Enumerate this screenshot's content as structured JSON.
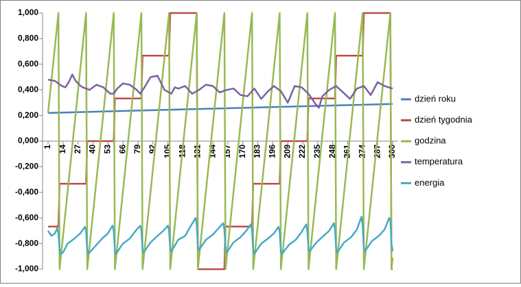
{
  "chart_data": {
    "type": "line",
    "xlim": [
      1,
      300
    ],
    "xticks": [
      1,
      14,
      27,
      40,
      53,
      66,
      79,
      92,
      105,
      118,
      131,
      144,
      157,
      170,
      183,
      196,
      209,
      222,
      235,
      248,
      261,
      274,
      287,
      300
    ],
    "ylim": [
      -1,
      1
    ],
    "yticks": [
      {
        "value": -1,
        "label": "-1,000"
      },
      {
        "value": -0.8,
        "label": "-0,800"
      },
      {
        "value": -0.6,
        "label": "-0,600"
      },
      {
        "value": -0.4,
        "label": "-0,400"
      },
      {
        "value": -0.2,
        "label": "-0,200"
      },
      {
        "value": 0,
        "label": "0,000"
      },
      {
        "value": 0.2,
        "label": "0,200"
      },
      {
        "value": 0.4,
        "label": "0,400"
      },
      {
        "value": 0.6,
        "label": "0,600"
      },
      {
        "value": 0.8,
        "label": "0,800"
      },
      {
        "value": 1,
        "label": "1,000"
      }
    ],
    "grid": false,
    "legend": "right",
    "series": [
      {
        "name": "dzień roku",
        "color": "#4a7ebb",
        "x": [
          1,
          300
        ],
        "values": [
          0.22,
          0.29
        ]
      },
      {
        "name": "dzień tygodnia",
        "color": "#be4b48",
        "x": [
          1,
          10,
          11,
          34,
          35,
          58,
          59,
          82,
          83,
          106,
          107,
          130,
          131,
          154,
          155,
          178,
          179,
          202,
          203,
          226,
          227,
          250,
          251,
          274,
          275,
          298,
          299,
          300
        ],
        "values": [
          -0.667,
          -0.667,
          -0.333,
          -0.333,
          0,
          0,
          0.333,
          0.333,
          0.667,
          0.667,
          1,
          1,
          -1,
          -1,
          -0.667,
          -0.667,
          -0.333,
          -0.333,
          0,
          0,
          0.333,
          0.333,
          0.667,
          0.667,
          1,
          1,
          -1,
          -1
        ]
      },
      {
        "name": "godzina",
        "color": "#98b954",
        "x": [
          1,
          10,
          11,
          34,
          35,
          58,
          59,
          82,
          83,
          106,
          107,
          130,
          131,
          154,
          155,
          178,
          179,
          202,
          203,
          226,
          227,
          250,
          251,
          274,
          275,
          298,
          299,
          300
        ],
        "values": [
          0.22,
          1,
          -1,
          1,
          -1,
          1,
          -1,
          1,
          -1,
          1,
          -1,
          1,
          -1,
          1,
          -1,
          1,
          -1,
          1,
          -1,
          1,
          -1,
          1,
          -1,
          1,
          -1,
          1,
          -1,
          -0.91
        ]
      },
      {
        "name": "temperatura",
        "color": "#7d60a0",
        "x": [
          1,
          7,
          13,
          16,
          19,
          22,
          25,
          28,
          31,
          34,
          37,
          43,
          49,
          55,
          58,
          61,
          66,
          72,
          78,
          81,
          84,
          90,
          96,
          102,
          108,
          111,
          114,
          120,
          126,
          132,
          138,
          144,
          150,
          156,
          162,
          168,
          174,
          180,
          186,
          192,
          197,
          203,
          209,
          215,
          221,
          227,
          233,
          236,
          239,
          245,
          251,
          257,
          263,
          269,
          275,
          281,
          287,
          293,
          300
        ],
        "values": [
          0.48,
          0.47,
          0.43,
          0.42,
          0.46,
          0.52,
          0.47,
          0.44,
          0.42,
          0.41,
          0.4,
          0.44,
          0.42,
          0.37,
          0.37,
          0.41,
          0.45,
          0.44,
          0.4,
          0.37,
          0.41,
          0.5,
          0.51,
          0.4,
          0.37,
          0.42,
          0.41,
          0.43,
          0.37,
          0.4,
          0.44,
          0.43,
          0.38,
          0.4,
          0.41,
          0.36,
          0.35,
          0.41,
          0.33,
          0.39,
          0.43,
          0.39,
          0.3,
          0.43,
          0.42,
          0.37,
          0.29,
          0.26,
          0.35,
          0.4,
          0.43,
          0.38,
          0.33,
          0.41,
          0.43,
          0.36,
          0.46,
          0.43,
          0.41
        ]
      },
      {
        "name": "energia",
        "color": "#46aac5",
        "x": [
          1,
          4,
          7,
          9,
          10,
          11,
          12,
          14,
          18,
          24,
          29,
          33,
          34,
          35,
          36,
          42,
          48,
          53,
          57,
          58,
          59,
          60,
          66,
          72,
          77,
          81,
          82,
          83,
          84,
          90,
          96,
          101,
          105,
          106,
          107,
          108,
          114,
          120,
          125,
          129,
          130,
          131,
          132,
          138,
          144,
          149,
          153,
          154,
          155,
          156,
          162,
          168,
          173,
          177,
          178,
          179,
          180,
          186,
          192,
          197,
          201,
          202,
          203,
          204,
          210,
          216,
          221,
          225,
          226,
          227,
          228,
          234,
          240,
          245,
          249,
          250,
          251,
          252,
          258,
          264,
          269,
          273,
          274,
          275,
          276,
          282,
          288,
          293,
          297,
          298,
          299,
          300
        ],
        "values": [
          -0.7,
          -0.74,
          -0.72,
          -0.68,
          -0.72,
          -0.84,
          -0.88,
          -0.87,
          -0.8,
          -0.76,
          -0.72,
          -0.67,
          -0.7,
          -0.85,
          -0.88,
          -0.82,
          -0.76,
          -0.72,
          -0.66,
          -0.7,
          -0.85,
          -0.88,
          -0.8,
          -0.76,
          -0.7,
          -0.66,
          -0.7,
          -0.85,
          -0.87,
          -0.79,
          -0.74,
          -0.7,
          -0.66,
          -0.7,
          -0.84,
          -0.86,
          -0.77,
          -0.74,
          -0.66,
          -0.6,
          -0.65,
          -0.82,
          -0.85,
          -0.77,
          -0.73,
          -0.68,
          -0.64,
          -0.69,
          -0.84,
          -0.87,
          -0.79,
          -0.75,
          -0.7,
          -0.65,
          -0.7,
          -0.85,
          -0.88,
          -0.8,
          -0.76,
          -0.72,
          -0.67,
          -0.71,
          -0.86,
          -0.88,
          -0.81,
          -0.77,
          -0.71,
          -0.65,
          -0.7,
          -0.84,
          -0.86,
          -0.79,
          -0.74,
          -0.7,
          -0.64,
          -0.69,
          -0.84,
          -0.87,
          -0.79,
          -0.75,
          -0.69,
          -0.59,
          -0.66,
          -0.83,
          -0.86,
          -0.78,
          -0.74,
          -0.69,
          -0.6,
          -0.62,
          -0.8,
          -0.86
        ]
      }
    ]
  }
}
